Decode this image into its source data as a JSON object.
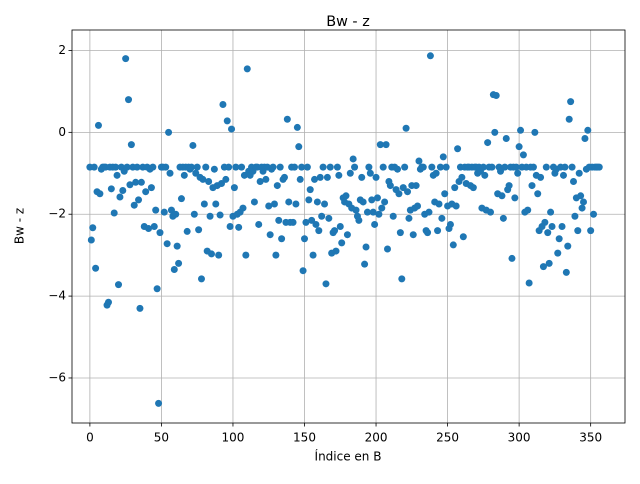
{
  "chart_data": {
    "type": "scatter",
    "title": "Bw - z",
    "x_label": "Índice en B",
    "y_label": "Bw - z",
    "color": "#1f77b4",
    "grid": true,
    "xlim": [
      -12.5,
      374
    ],
    "ylim": [
      -7.1,
      2.5
    ],
    "xticks": [
      0,
      50,
      100,
      150,
      200,
      250,
      300,
      350
    ],
    "yticks": [
      {
        "value": -6,
        "label": "−6"
      },
      {
        "value": -4,
        "label": "−4"
      },
      {
        "value": -2,
        "label": "−2"
      },
      0,
      2
    ],
    "x": [
      0,
      1,
      2,
      3,
      4,
      5,
      6,
      7,
      8,
      9,
      10,
      11,
      12,
      13,
      14,
      15,
      16,
      17,
      18,
      19,
      20,
      21,
      22,
      23,
      24,
      25,
      26,
      27,
      28,
      29,
      30,
      31,
      32,
      33,
      34,
      35,
      36,
      37,
      38,
      39,
      40,
      41,
      42,
      43,
      44,
      45,
      46,
      47,
      48,
      49,
      50,
      51,
      52,
      53,
      54,
      55,
      56,
      57,
      58,
      59,
      60,
      61,
      62,
      63,
      64,
      65,
      66,
      67,
      68,
      69,
      70,
      71,
      72,
      73,
      74,
      75,
      76,
      77,
      78,
      79,
      80,
      81,
      82,
      83,
      84,
      85,
      86,
      87,
      88,
      89,
      90,
      91,
      92,
      93,
      94,
      95,
      96,
      97,
      98,
      99,
      100,
      101,
      102,
      103,
      104,
      105,
      106,
      107,
      108,
      109,
      110,
      111,
      112,
      113,
      114,
      115,
      116,
      117,
      118,
      119,
      120,
      121,
      122,
      123,
      124,
      125,
      126,
      127,
      128,
      129,
      130,
      131,
      132,
      133,
      134,
      135,
      136,
      137,
      138,
      139,
      140,
      141,
      142,
      143,
      144,
      145,
      146,
      147,
      148,
      149,
      150,
      151,
      152,
      153,
      154,
      155,
      156,
      157,
      158,
      159,
      160,
      161,
      162,
      163,
      164,
      165,
      166,
      167,
      168,
      169,
      170,
      171,
      172,
      173,
      174,
      175,
      176,
      177,
      178,
      179,
      180,
      181,
      182,
      183,
      184,
      185,
      186,
      187,
      188,
      189,
      190,
      191,
      192,
      193,
      194,
      195,
      196,
      197,
      198,
      199,
      200,
      201,
      202,
      203,
      204,
      205,
      206,
      207,
      208,
      209,
      210,
      211,
      212,
      213,
      214,
      215,
      216,
      217,
      218,
      219,
      220,
      221,
      222,
      223,
      224,
      225,
      226,
      227,
      228,
      229,
      230,
      231,
      232,
      233,
      234,
      235,
      236,
      237,
      238,
      239,
      240,
      241,
      242,
      243,
      244,
      245,
      246,
      247,
      248,
      249,
      250,
      251,
      252,
      253,
      254,
      255,
      256,
      257,
      258,
      259,
      260,
      261,
      262,
      263,
      264,
      265,
      266,
      267,
      268,
      269,
      270,
      271,
      272,
      273,
      274,
      275,
      276,
      277,
      278,
      279,
      280,
      281,
      282,
      283,
      284,
      285,
      286,
      287,
      288,
      289,
      290,
      291,
      292,
      293,
      294,
      295,
      296,
      297,
      298,
      299,
      300,
      301,
      302,
      303,
      304,
      305,
      306,
      307,
      308,
      309,
      310,
      311,
      312,
      313,
      314,
      315,
      316,
      317,
      318,
      319,
      320,
      321,
      322,
      323,
      324,
      325,
      326,
      327,
      328,
      329,
      330,
      331,
      332,
      333,
      334,
      335,
      336,
      337,
      338,
      339,
      340,
      341,
      342,
      343,
      344,
      345,
      346,
      347,
      348,
      349,
      350,
      351,
      352,
      353,
      354,
      355,
      356
    ],
    "values": [
      -0.85,
      -2.63,
      -2.33,
      -0.85,
      -3.32,
      -1.45,
      0.17,
      -1.5,
      -0.9,
      -0.85,
      -0.85,
      -0.85,
      -4.22,
      -4.15,
      -0.85,
      -1.38,
      -0.85,
      -1.97,
      -0.85,
      -1.05,
      -3.72,
      -1.58,
      -0.85,
      -1.42,
      -0.95,
      1.8,
      -0.85,
      0.8,
      -1.28,
      -0.3,
      -0.85,
      -1.78,
      -1.22,
      -0.85,
      -1.65,
      -4.3,
      -1.22,
      -0.85,
      -2.3,
      -1.45,
      -0.85,
      -2.35,
      -0.9,
      -1.35,
      -0.85,
      -2.3,
      -1.9,
      -3.82,
      -6.62,
      -2.45,
      -0.85,
      -0.85,
      -1.95,
      -0.85,
      -2.72,
      0.0,
      -1.0,
      -1.9,
      -2.05,
      -3.35,
      -2.0,
      -2.78,
      -3.2,
      -0.85,
      -1.62,
      -0.85,
      -1.05,
      -0.85,
      -2.42,
      -0.85,
      -0.9,
      -0.85,
      -0.32,
      -2.0,
      -1.0,
      -0.85,
      -2.38,
      -1.1,
      -3.58,
      -1.15,
      -1.75,
      -0.85,
      -2.9,
      -1.2,
      -2.05,
      -2.97,
      -1.35,
      -0.9,
      -1.75,
      -1.3,
      -3.0,
      -2.02,
      -1.25,
      0.68,
      -0.85,
      -1.15,
      0.28,
      -0.85,
      -2.3,
      0.08,
      -2.05,
      -1.35,
      -0.85,
      -2.0,
      -2.32,
      -1.95,
      -0.85,
      -1.85,
      -1.05,
      -3.0,
      1.55,
      -0.95,
      -1.05,
      -0.85,
      -0.95,
      -1.7,
      -0.85,
      -0.85,
      -2.25,
      -1.2,
      -0.85,
      -0.95,
      -0.85,
      -1.15,
      -0.85,
      -1.8,
      -2.5,
      -0.9,
      -0.85,
      -1.75,
      -3.0,
      -1.3,
      -2.15,
      -0.85,
      -2.6,
      -1.15,
      -1.1,
      -2.2,
      0.32,
      -1.7,
      -2.2,
      -0.85,
      -2.2,
      -0.85,
      -1.75,
      0.12,
      -0.35,
      -1.15,
      -0.85,
      -3.38,
      -2.6,
      -2.2,
      -0.85,
      -1.65,
      -1.4,
      -2.15,
      -3.0,
      -1.15,
      -2.25,
      -1.7,
      -2.4,
      -1.1,
      -2.05,
      -0.85,
      -1.75,
      -3.7,
      -1.1,
      -2.1,
      -0.85,
      -2.95,
      -2.45,
      -2.4,
      -2.9,
      -0.85,
      -1.05,
      -2.3,
      -2.7,
      -1.6,
      -1.7,
      -1.55,
      -2.5,
      -1.75,
      -1.0,
      -1.85,
      -0.65,
      -0.85,
      -1.9,
      -2.05,
      -2.15,
      -1.65,
      -1.1,
      -1.7,
      -3.22,
      -2.8,
      -1.95,
      -0.85,
      -1.0,
      -1.65,
      -1.95,
      -2.25,
      -1.1,
      -1.6,
      -2.0,
      -0.3,
      -1.85,
      -0.85,
      -1.7,
      -0.3,
      -2.85,
      -1.2,
      -1.3,
      -0.85,
      -2.05,
      -0.85,
      -1.4,
      -0.9,
      -1.5,
      -2.45,
      -3.58,
      -1.35,
      -0.85,
      0.1,
      -1.45,
      -2.1,
      -1.9,
      -1.3,
      -2.5,
      -1.85,
      -1.3,
      -1.8,
      -0.7,
      -0.9,
      -0.85,
      -0.85,
      -2.0,
      -2.4,
      -2.45,
      -1.95,
      1.87,
      -0.85,
      -1.05,
      -1.7,
      -1.0,
      -2.4,
      -1.75,
      -0.85,
      -2.1,
      -0.6,
      -1.5,
      -0.85,
      -1.8,
      -2.35,
      -2.25,
      -1.75,
      -2.75,
      -1.35,
      -1.8,
      -0.4,
      -1.2,
      -0.85,
      -1.1,
      -2.55,
      -0.85,
      -1.25,
      -0.85,
      -0.85,
      -1.3,
      -0.85,
      -1.35,
      -0.85,
      -0.85,
      -1.0,
      -0.85,
      -0.95,
      -1.85,
      -0.85,
      -1.05,
      -1.9,
      -0.25,
      -0.85,
      -1.95,
      -0.85,
      0.92,
      0.0,
      0.9,
      -1.5,
      -0.85,
      -0.95,
      -1.55,
      -2.1,
      -0.85,
      -0.15,
      -1.4,
      -1.3,
      -0.85,
      -3.08,
      -0.85,
      -1.6,
      -0.85,
      -1.0,
      -0.35,
      0.05,
      -0.85,
      -0.55,
      -1.95,
      -0.85,
      -1.9,
      -3.68,
      -0.85,
      -1.3,
      -0.85,
      0.0,
      -1.05,
      -1.5,
      -2.4,
      -1.1,
      -2.3,
      -3.28,
      -2.2,
      -0.85,
      -2.45,
      -3.2,
      -1.95,
      -2.3,
      -0.85,
      -1.0,
      -0.9,
      -2.95,
      -2.6,
      -0.85,
      -2.3,
      -1.05,
      -0.85,
      -3.42,
      -2.78,
      0.32,
      0.75,
      -0.85,
      -1.2,
      -2.05,
      -1.6,
      -2.4,
      -1.0,
      -1.55,
      -1.85,
      -1.7,
      -0.15,
      -0.9,
      0.05,
      -0.85,
      -2.4,
      -0.85,
      -2.0,
      -0.85,
      -0.85,
      -0.85,
      -0.85
    ]
  }
}
